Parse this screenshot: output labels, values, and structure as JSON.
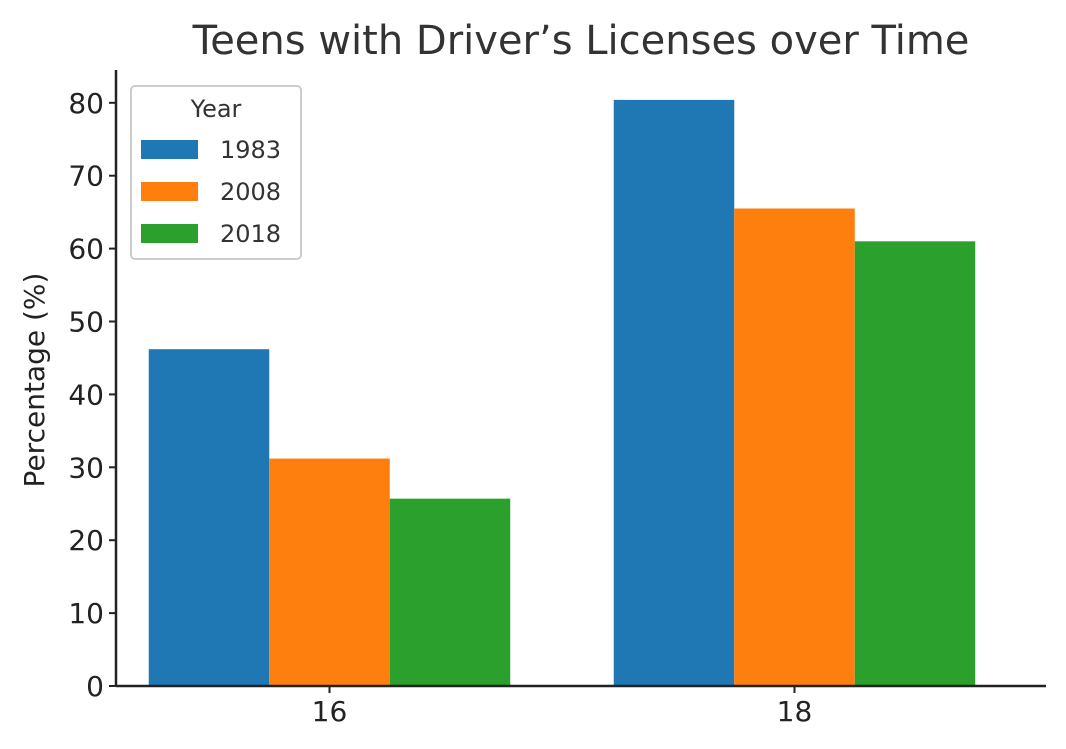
{
  "chart_data": {
    "type": "bar",
    "title": "Teens with Driver’s Licenses over Time",
    "xlabel": "",
    "ylabel": "Percentage (%)",
    "categories": [
      "16",
      "18"
    ],
    "series": [
      {
        "name": "1983",
        "values": [
          46.2,
          80.4
        ],
        "color": "#1f77b4"
      },
      {
        "name": "2008",
        "values": [
          31.2,
          65.5
        ],
        "color": "#ff7f0e"
      },
      {
        "name": "2018",
        "values": [
          25.7,
          61.0
        ],
        "color": "#2ca02c"
      }
    ],
    "ylim": [
      0,
      84.5
    ],
    "yticks": [
      "0",
      "10",
      "20",
      "30",
      "40",
      "50",
      "60",
      "70",
      "80"
    ],
    "legend": {
      "title": "Year",
      "placement": "top-left"
    },
    "grid": false
  }
}
